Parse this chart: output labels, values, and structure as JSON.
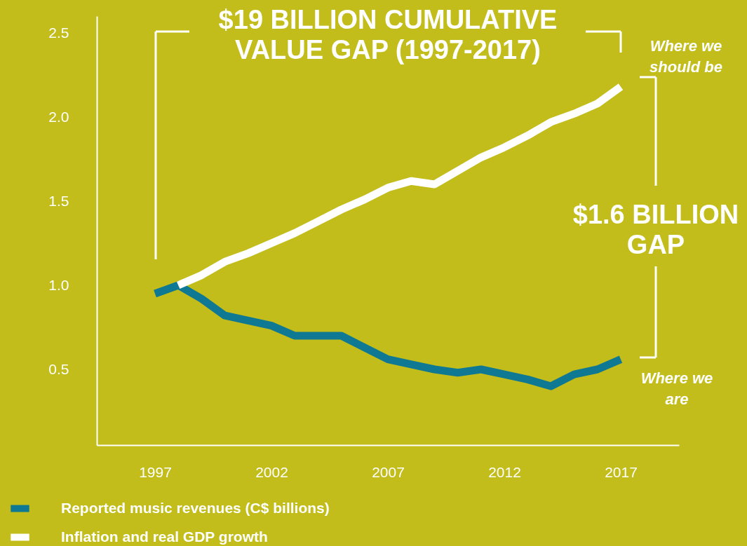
{
  "chart_data": {
    "type": "line",
    "title": "$19 BILLION CUMULATIVE VALUE GAP (1997-2017)",
    "x": [
      1997,
      1998,
      1999,
      2000,
      2001,
      2002,
      2003,
      2004,
      2005,
      2006,
      2007,
      2008,
      2009,
      2010,
      2011,
      2012,
      2013,
      2014,
      2015,
      2016,
      2017
    ],
    "series": [
      {
        "name": "Reported music revenues (C$ billions)",
        "color": "#0f7893",
        "values": [
          0.95,
          1.0,
          0.92,
          0.82,
          0.79,
          0.76,
          0.7,
          0.7,
          0.7,
          0.63,
          0.56,
          0.53,
          0.5,
          0.48,
          0.5,
          0.47,
          0.44,
          0.4,
          0.47,
          0.5,
          0.56
        ]
      },
      {
        "name": "Inflation and real GDP growth",
        "color": "#ffffff",
        "values": [
          null,
          1.0,
          1.06,
          1.14,
          1.19,
          1.25,
          1.31,
          1.38,
          1.45,
          1.51,
          1.58,
          1.62,
          1.6,
          1.68,
          1.76,
          1.82,
          1.89,
          1.97,
          2.02,
          2.08,
          2.18
        ]
      }
    ],
    "xlim": [
      1994.5,
      2019.5
    ],
    "xticks": [
      1997,
      2002,
      2007,
      2012,
      2017
    ],
    "ylim": [
      0.05,
      2.6
    ],
    "yticks": [
      {
        "value": 0.5,
        "label": "0.5"
      },
      {
        "value": 1.0,
        "label": "1.0"
      },
      {
        "value": 1.5,
        "label": "1.5"
      },
      {
        "value": 2.0,
        "label": "2.0"
      },
      {
        "value": 2.5,
        "label": "2.5"
      }
    ],
    "annotations": [
      {
        "text": "Where we should be",
        "x": 2017,
        "y": 2.18
      },
      "$1.6 BILLION GAP",
      {
        "text": "Where we are",
        "x": 2017,
        "y": 0.56
      }
    ],
    "grid": false,
    "legend": "bottom",
    "line_style": "solid",
    "marker": "none"
  }
}
